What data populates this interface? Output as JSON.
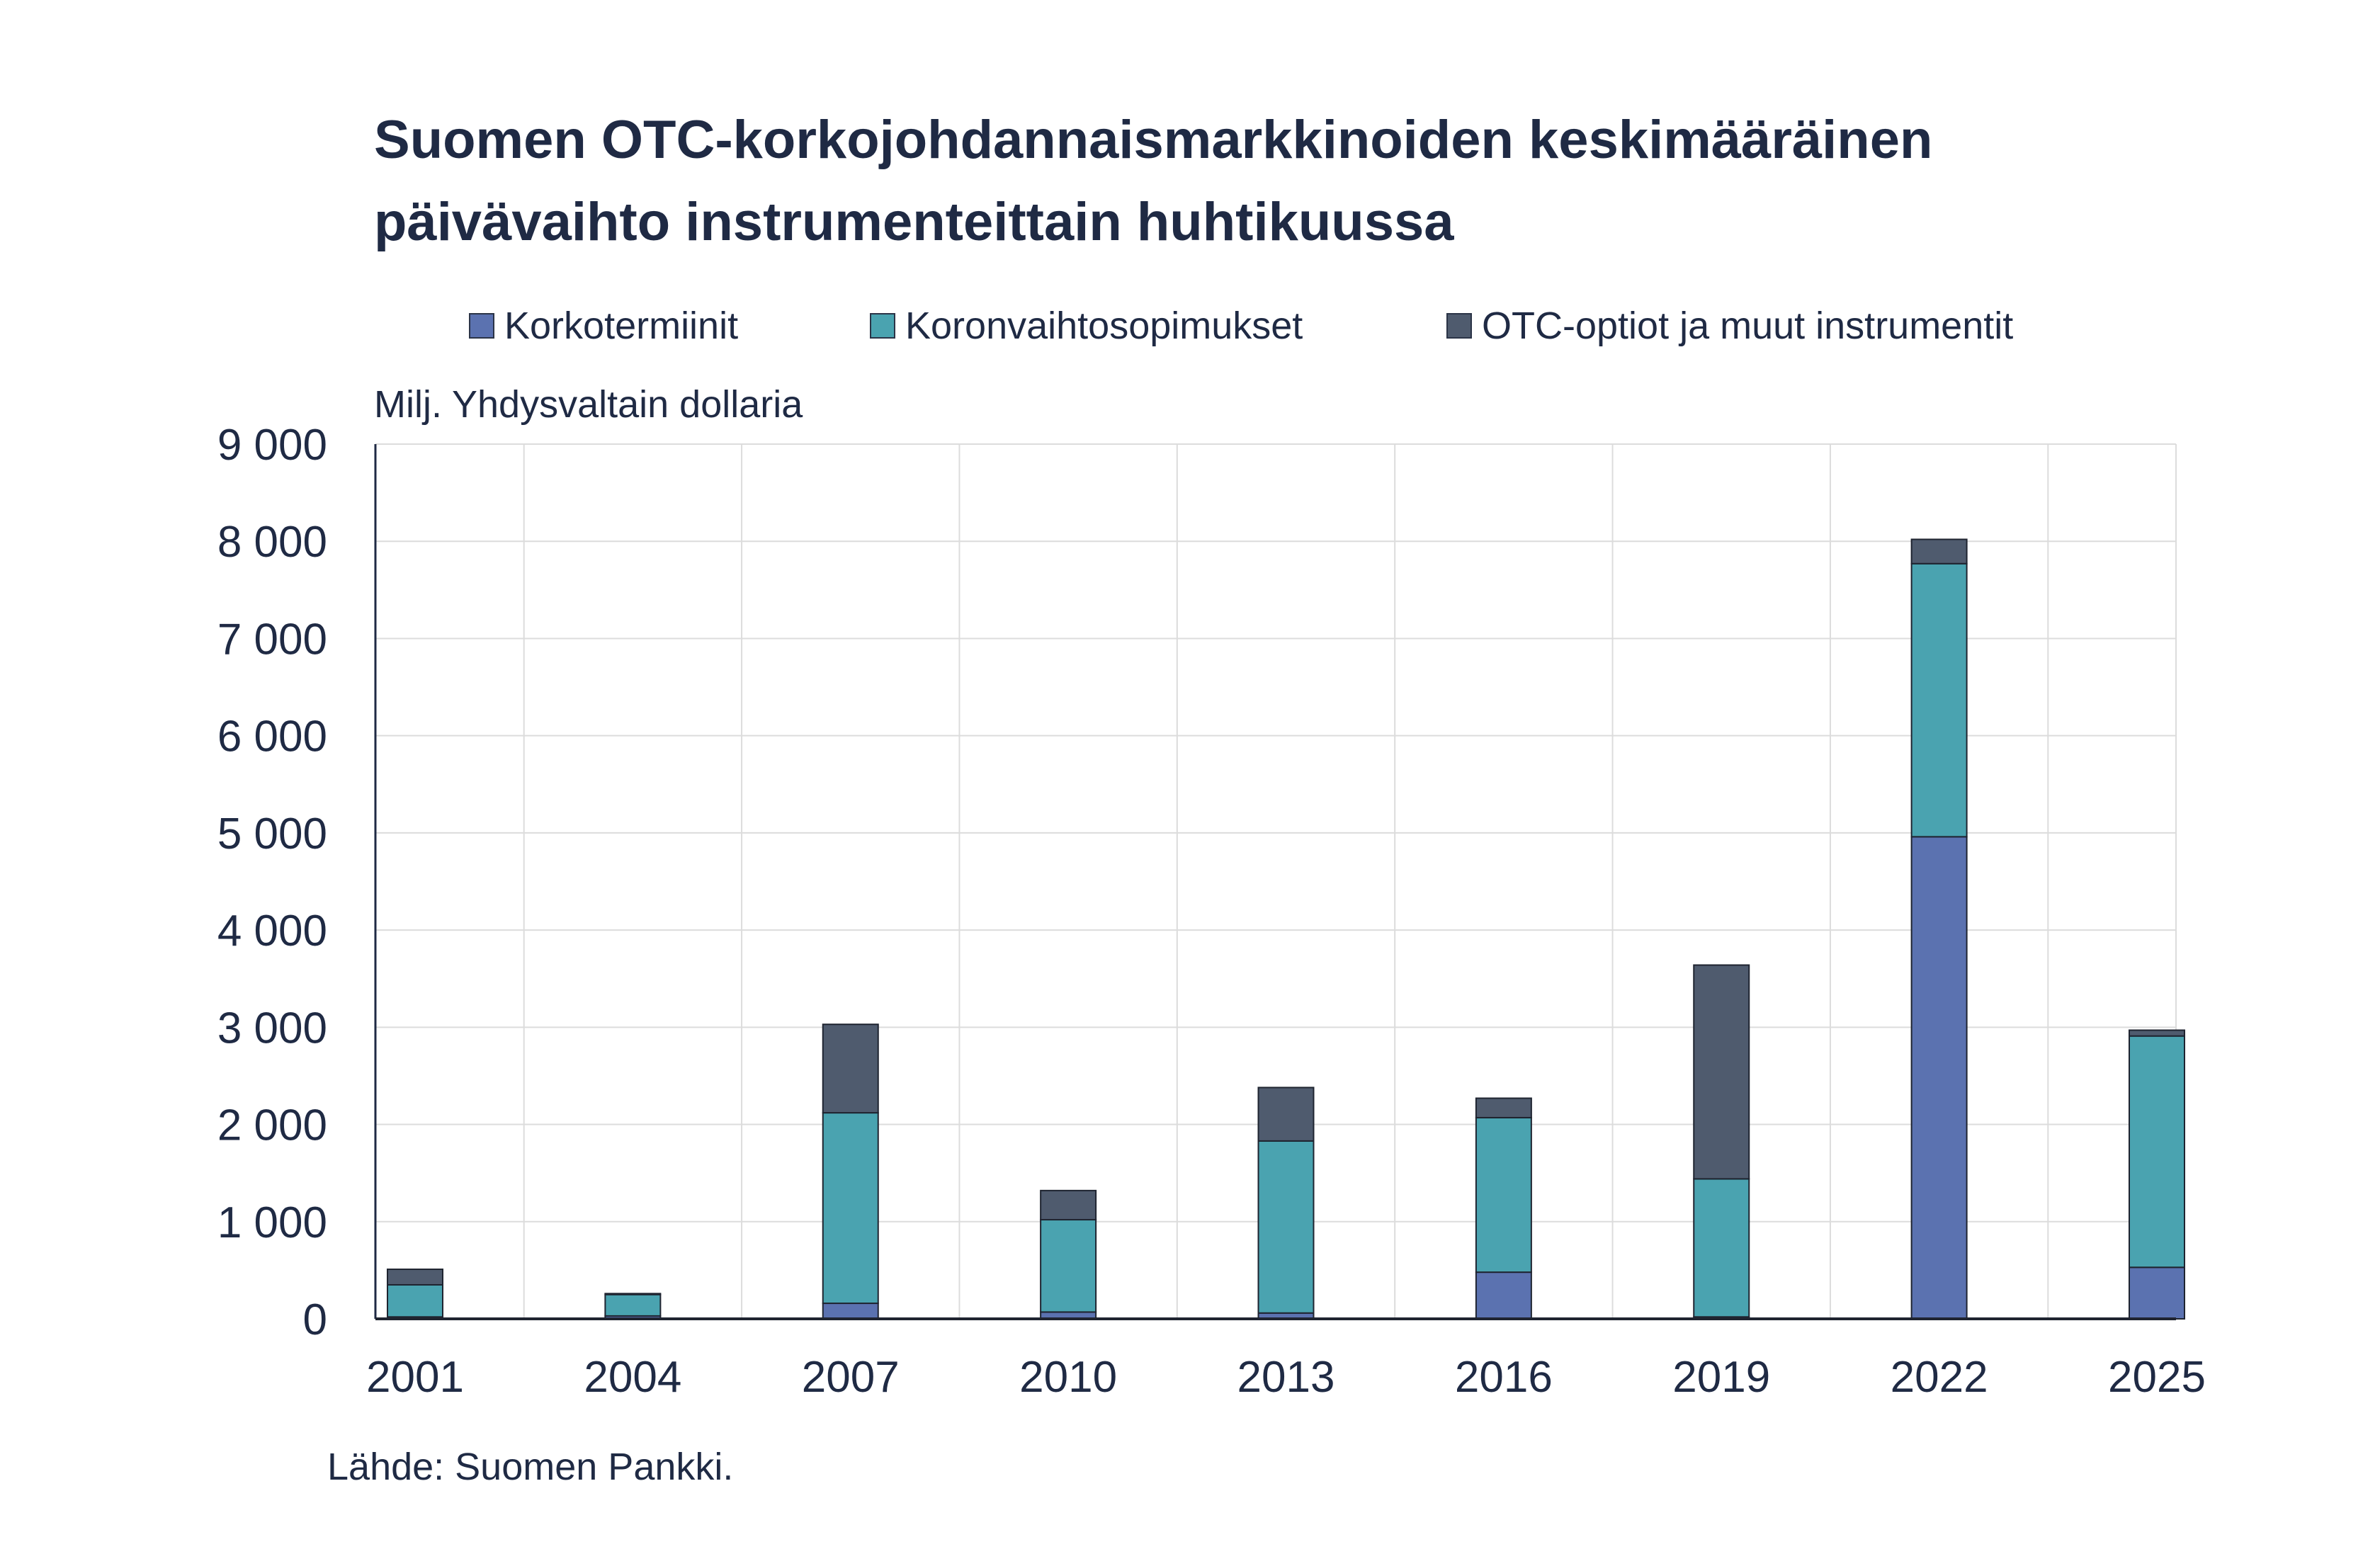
{
  "title_lines": [
    "Suomen OTC-korkojohdannaismarkkinoiden keskimääräinen",
    "päivävaihto instrumenteittain huhtikuussa"
  ],
  "source": "Lähde: Suomen Pankki.",
  "chart_data": {
    "type": "bar",
    "stacked": true,
    "title": "Suomen OTC-korkojohdannaismarkkinoiden keskimääräinen päivävaihto instrumenteittain huhtikuussa",
    "ylabel": "Milj. Yhdysvaltain dollaria",
    "xlabel": "",
    "ylim": [
      0,
      9000
    ],
    "yticks": [
      0,
      1000,
      2000,
      3000,
      4000,
      5000,
      6000,
      7000,
      8000,
      9000
    ],
    "ytick_labels": [
      "0",
      "1 000",
      "2 000",
      "3 000",
      "4 000",
      "5 000",
      "6 000",
      "7 000",
      "8 000",
      "9 000"
    ],
    "grid": true,
    "legend_position": "top",
    "categories": [
      "2001",
      "2004",
      "2007",
      "2010",
      "2013",
      "2016",
      "2019",
      "2022",
      "2025"
    ],
    "series": [
      {
        "name": "Korkotermiinit",
        "color": "#5b72b0",
        "values": [
          20,
          30,
          160,
          70,
          60,
          480,
          20,
          4960,
          530
        ]
      },
      {
        "name": "Koronvaihtosopimukset",
        "color": "#4aa3b0",
        "values": [
          330,
          220,
          1960,
          950,
          1770,
          1590,
          1420,
          2810,
          2380
        ]
      },
      {
        "name": "OTC-optiot ja muut instrumentit",
        "color": "#4f5b6e",
        "values": [
          160,
          10,
          910,
          300,
          550,
          200,
          2200,
          250,
          60
        ]
      }
    ]
  }
}
